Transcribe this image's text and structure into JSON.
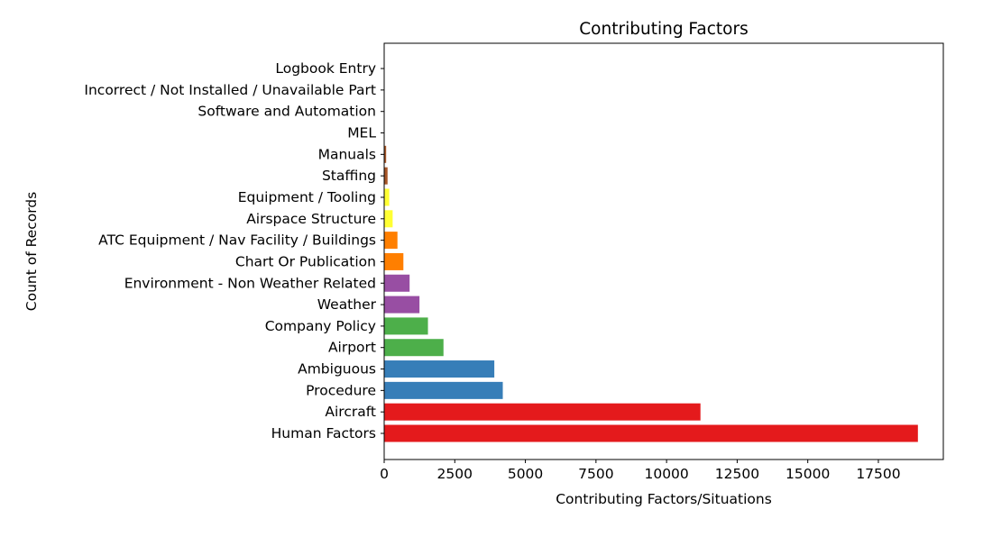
{
  "chart_data": {
    "type": "bar",
    "orientation": "horizontal",
    "title": "Contributing Factors",
    "xlabel": "Contributing Factors/Situations",
    "ylabel": "Count of Records",
    "xlim": [
      0,
      19800
    ],
    "xticks": [
      0,
      2500,
      5000,
      7500,
      10000,
      12500,
      15000,
      17500
    ],
    "grid": false,
    "categories": [
      "Human Factors",
      "Aircraft",
      "Procedure",
      "Ambiguous",
      "Airport",
      "Company Policy",
      "Weather",
      "Environment - Non Weather Related",
      "Chart Or Publication",
      "ATC Equipment / Nav Facility / Buildings",
      "Airspace Structure",
      "Equipment / Tooling",
      "Staffing",
      "Manuals",
      "MEL",
      "Software and Automation",
      "Incorrect / Not Installed / Unavailable Part",
      "Logbook Entry"
    ],
    "values": [
      18900,
      11200,
      4200,
      3900,
      2100,
      1550,
      1250,
      900,
      680,
      470,
      300,
      180,
      120,
      70,
      0,
      0,
      0,
      0
    ],
    "colors": [
      "#e41a1c",
      "#e41a1c",
      "#377eb8",
      "#377eb8",
      "#4daf4a",
      "#4daf4a",
      "#984ea3",
      "#984ea3",
      "#ff7f00",
      "#ff7f00",
      "#ffff33",
      "#ffff33",
      "#a65628",
      "#a65628",
      "#f781bf",
      "#f781bf",
      "#999999",
      "#999999"
    ]
  }
}
